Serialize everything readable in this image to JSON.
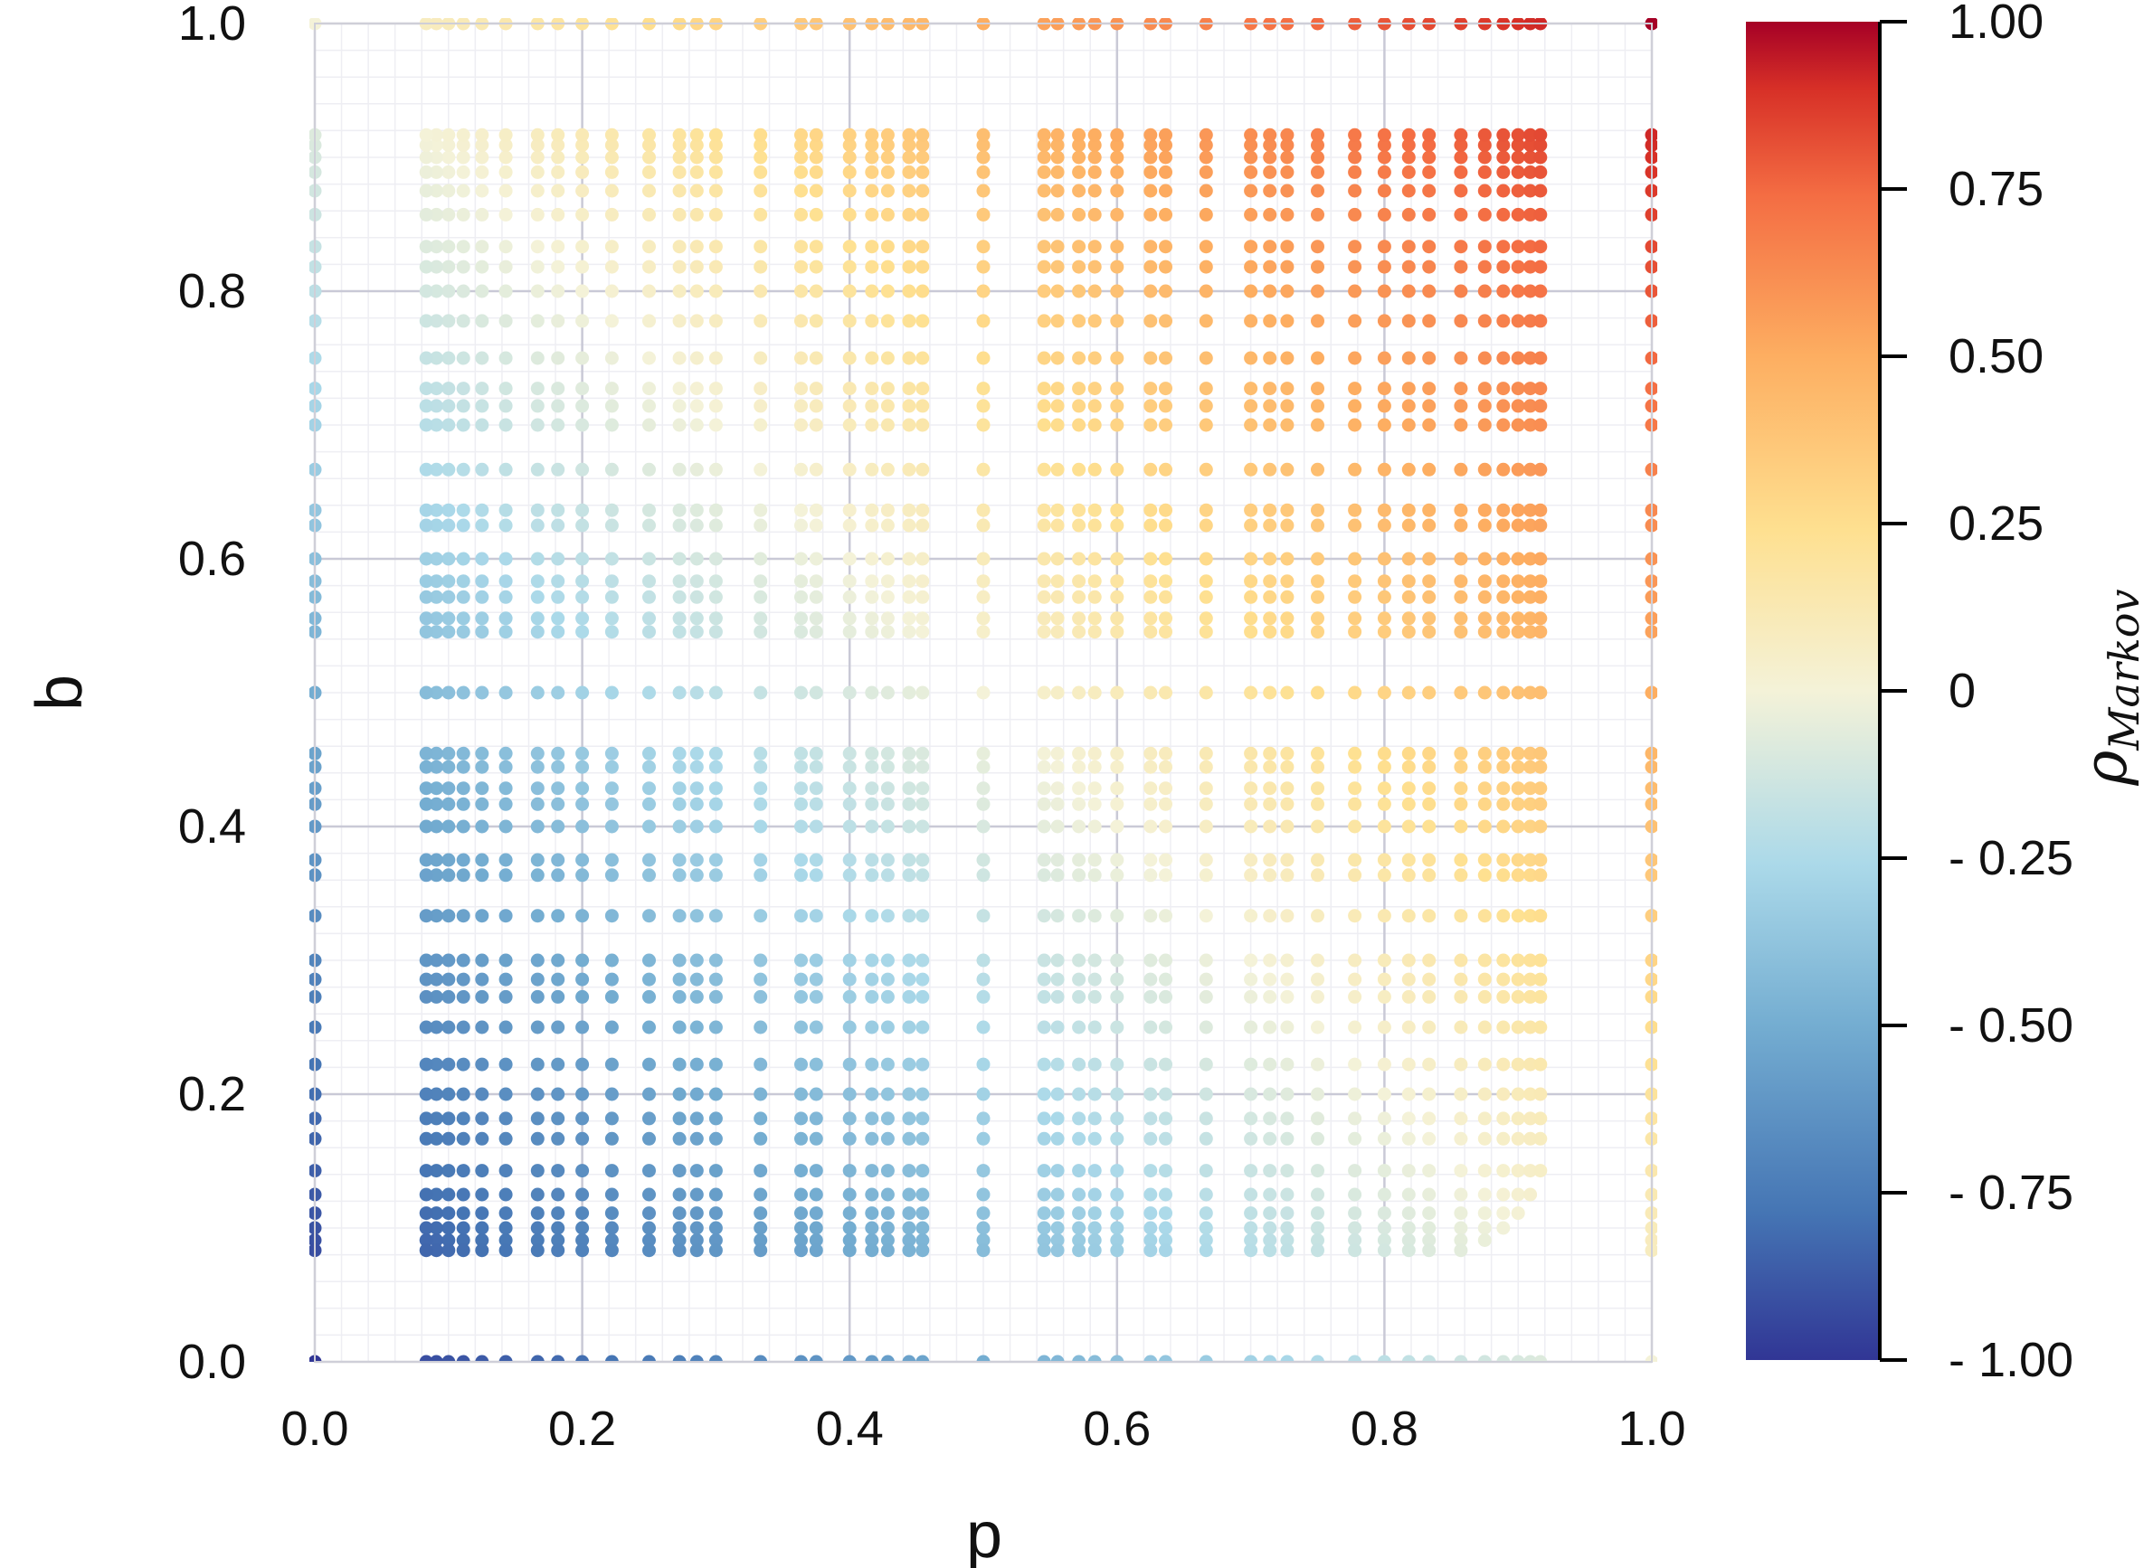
{
  "chart_data": {
    "type": "scatter",
    "title": "",
    "xlabel": "p",
    "ylabel": "b",
    "xlim": [
      0,
      1
    ],
    "ylim": [
      0,
      1
    ],
    "x_ticks": [
      "0.0",
      "0.2",
      "0.4",
      "0.6",
      "0.8",
      "1.0"
    ],
    "y_ticks": [
      "0.0",
      "0.2",
      "0.4",
      "0.6",
      "0.8",
      "1.0"
    ],
    "grid": true,
    "colorbar": {
      "label_base": "ρ",
      "label_sub": "Markov",
      "range": [
        -1,
        1
      ],
      "ticks": [
        "1.00",
        "0.75",
        "0.50",
        "0.25",
        "0",
        "- 0.25",
        "- 0.50",
        "- 0.75",
        "- 1.00"
      ],
      "tick_values": [
        1,
        0.75,
        0.5,
        0.25,
        0,
        -0.25,
        -0.5,
        -0.75,
        -1
      ],
      "colormap": [
        "#313695",
        "#4575b4",
        "#74add1",
        "#abd9e9",
        "#e0f3f8",
        "#fee090",
        "#fdae61",
        "#f46d43",
        "#d73027",
        "#a50026"
      ]
    },
    "points_description_rule": "points lie on rational grid p=i/n, b=j/m (n,m up to 12) within the region b^2+(p-1)^2 and p^2+(b-1)^2 bounded; color = rho_Markov",
    "series": [
      {
        "name": "",
        "points_rule": "p,b in [0,1]; denominators n,m <= 12"
      }
    ]
  }
}
